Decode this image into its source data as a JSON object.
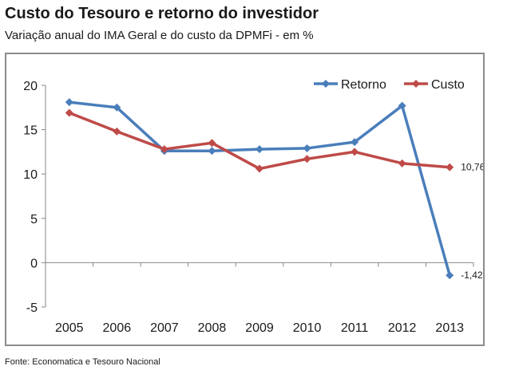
{
  "title": "Custo do Tesouro e retorno do investidor",
  "subtitle": "Variação anual do IMA Geral e do custo da DPMFi - em %",
  "source": "Fonte: Economatica e Tesouro Nacional",
  "chart_data": {
    "type": "line",
    "x": [
      "2005",
      "2006",
      "2007",
      "2008",
      "2009",
      "2010",
      "2011",
      "2012",
      "2013"
    ],
    "ylim": [
      -5,
      20
    ],
    "yticks": [
      "20",
      "15",
      "10",
      "5",
      "0",
      "-5"
    ],
    "ytick_values": [
      20,
      15,
      10,
      5,
      0,
      -5
    ],
    "grid": false,
    "legend": "top-right",
    "series": [
      {
        "name": "Retorno",
        "color": "#4a7ebb",
        "values": [
          18.1,
          17.5,
          12.6,
          12.6,
          12.8,
          12.9,
          13.6,
          17.7,
          -1.42
        ],
        "end_label": "-1,42"
      },
      {
        "name": "Custo",
        "color": "#be4b48",
        "values": [
          16.9,
          14.8,
          12.8,
          13.5,
          10.6,
          11.7,
          12.5,
          11.2,
          10.76
        ],
        "end_label": "10,76"
      }
    ]
  }
}
